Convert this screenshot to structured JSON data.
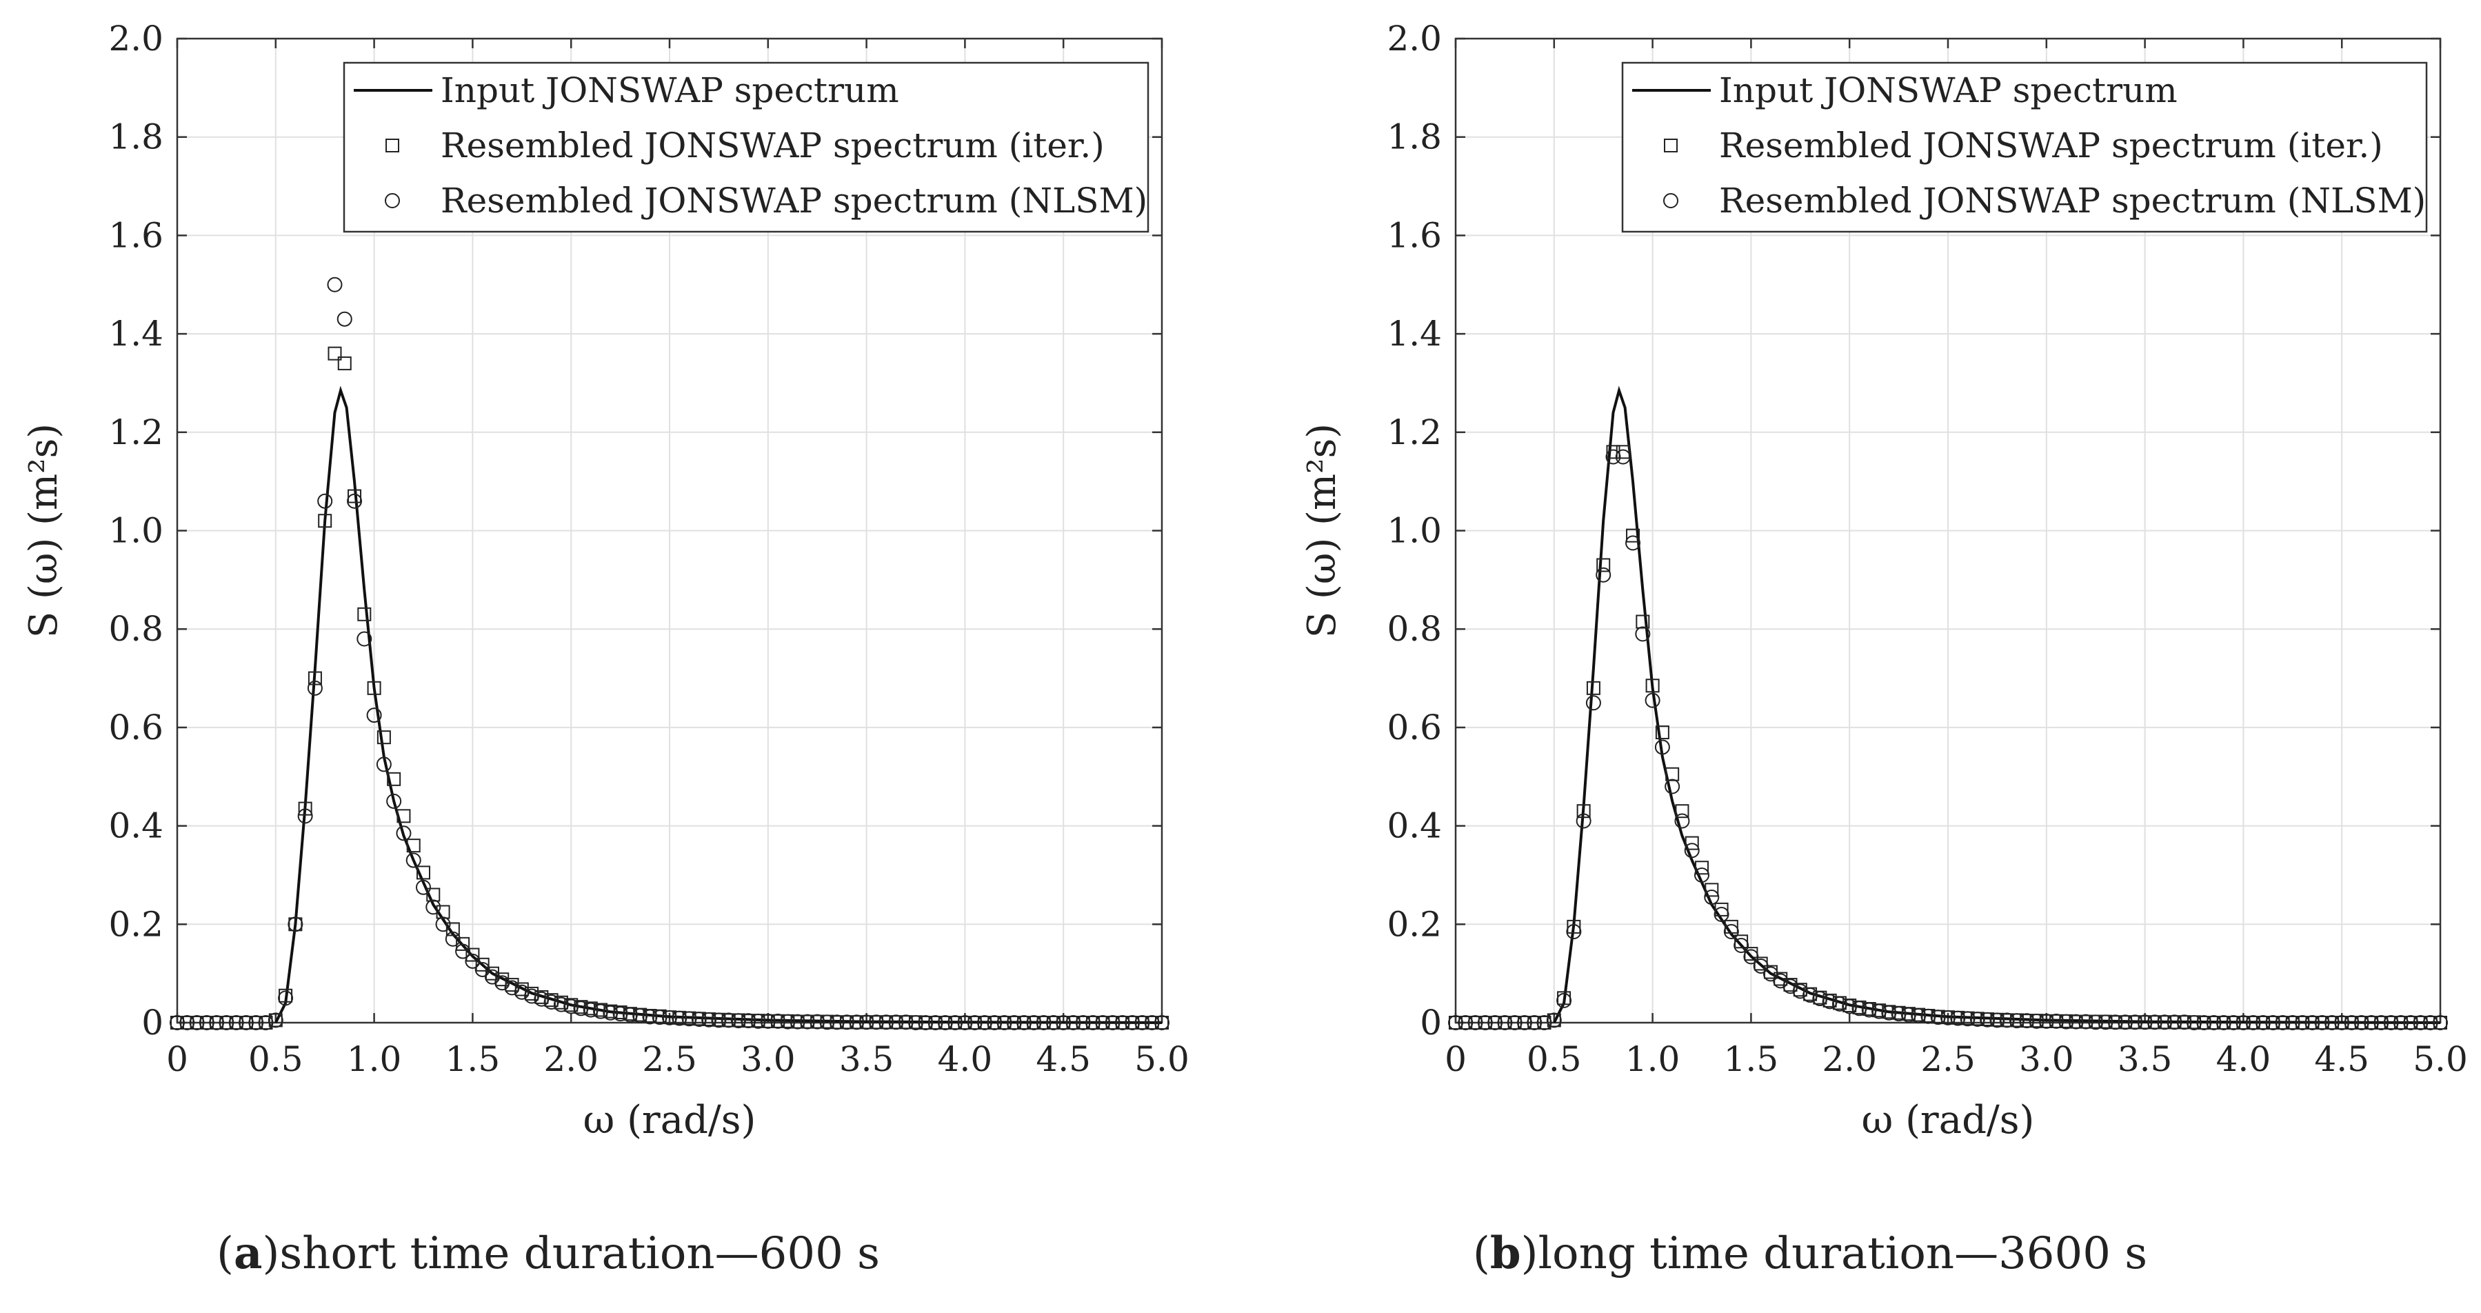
{
  "figure": {
    "captions": [
      {
        "letter": "a",
        "text": "short time duration—600 s"
      },
      {
        "letter": "b",
        "text": "long time duration—3600 s"
      }
    ]
  },
  "chart_data": [
    {
      "type": "line",
      "title": "",
      "xlabel": "ω (rad/s)",
      "ylabel": "S (ω) (m²s)",
      "xlim": [
        0,
        5
      ],
      "ylim": [
        0,
        2
      ],
      "grid": true,
      "legend_position": "top-right",
      "x_ticks": [
        "0",
        "0.5",
        "1.0",
        "1.5",
        "2.0",
        "2.5",
        "3.0",
        "3.5",
        "4.0",
        "4.5",
        "5.0"
      ],
      "y_ticks": [
        "0",
        "0.2",
        "0.4",
        "0.6",
        "0.8",
        "1.0",
        "1.2",
        "1.4",
        "1.6",
        "1.8",
        "2.0"
      ],
      "series": [
        {
          "name": "Input JONSWAP spectrum",
          "marker": "line",
          "x": [
            0.5,
            0.55,
            0.6,
            0.65,
            0.7,
            0.75,
            0.8,
            0.83,
            0.86,
            0.9,
            0.95,
            1.0,
            1.05,
            1.1,
            1.15,
            1.2,
            1.3,
            1.4,
            1.5,
            1.6,
            1.8,
            2.0,
            2.2,
            2.5,
            3.0,
            3.5,
            4.0,
            4.5,
            5.0
          ],
          "y": [
            0,
            0.04,
            0.2,
            0.44,
            0.72,
            1.02,
            1.24,
            1.285,
            1.25,
            1.1,
            0.88,
            0.68,
            0.54,
            0.45,
            0.38,
            0.33,
            0.24,
            0.18,
            0.135,
            0.1,
            0.06,
            0.036,
            0.022,
            0.012,
            0.005,
            0.002,
            0.001,
            0.0005,
            0
          ]
        },
        {
          "name": "Resembled JONSWAP spectrum (iter.)",
          "marker": "square",
          "x": [
            0,
            0.05,
            0.1,
            0.15,
            0.2,
            0.25,
            0.3,
            0.35,
            0.4,
            0.45,
            0.5,
            0.55,
            0.6,
            0.65,
            0.7,
            0.75,
            0.8,
            0.85,
            0.9,
            0.95,
            1.0,
            1.05,
            1.1,
            1.15,
            1.2,
            1.25,
            1.3,
            1.35,
            1.4,
            1.45,
            1.5,
            1.55,
            1.6,
            1.65,
            1.7,
            1.75,
            1.8,
            1.85,
            1.9,
            1.95,
            2.0,
            2.05,
            2.1,
            2.15,
            2.2,
            2.25,
            2.3,
            2.35,
            2.4,
            2.45,
            2.5,
            2.55,
            2.6,
            2.65,
            2.7,
            2.75,
            2.8,
            2.85,
            2.9,
            2.95,
            3.0,
            3.05,
            3.1,
            3.15,
            3.2,
            3.25,
            3.3,
            3.35,
            3.4,
            3.45,
            3.5,
            3.55,
            3.6,
            3.65,
            3.7,
            3.75,
            3.8,
            3.85,
            3.9,
            3.95,
            4.0,
            4.05,
            4.1,
            4.15,
            4.2,
            4.25,
            4.3,
            4.35,
            4.4,
            4.45,
            4.5,
            4.55,
            4.6,
            4.65,
            4.7,
            4.75,
            4.8,
            4.85,
            4.9,
            4.95,
            5.0
          ],
          "y": [
            0,
            0,
            0,
            0,
            0,
            0,
            0,
            0,
            0,
            0,
            0.005,
            0.055,
            0.2,
            0.435,
            0.7,
            1.02,
            1.36,
            1.34,
            1.07,
            0.83,
            0.68,
            0.58,
            0.495,
            0.42,
            0.36,
            0.305,
            0.26,
            0.225,
            0.19,
            0.16,
            0.138,
            0.118,
            0.1,
            0.088,
            0.077,
            0.068,
            0.059,
            0.052,
            0.046,
            0.041,
            0.036,
            0.032,
            0.029,
            0.026,
            0.023,
            0.021,
            0.018,
            0.016,
            0.014,
            0.013,
            0.011,
            0.01,
            0.009,
            0.008,
            0.007,
            0.006,
            0.005,
            0.005,
            0.004,
            0.004,
            0.003,
            0.003,
            0.003,
            0.002,
            0.002,
            0.002,
            0.002,
            0.001,
            0.001,
            0.001,
            0.001,
            0.001,
            0.001,
            0.001,
            0.001,
            0.001,
            0,
            0,
            0,
            0,
            0,
            0,
            0,
            0,
            0,
            0,
            0,
            0,
            0,
            0,
            0,
            0,
            0,
            0,
            0,
            0,
            0,
            0,
            0,
            0,
            0
          ]
        },
        {
          "name": "Resembled JONSWAP spectrum (NLSM)",
          "marker": "circle",
          "x": [
            0,
            0.05,
            0.1,
            0.15,
            0.2,
            0.25,
            0.3,
            0.35,
            0.4,
            0.45,
            0.5,
            0.55,
            0.6,
            0.65,
            0.7,
            0.75,
            0.8,
            0.85,
            0.9,
            0.95,
            1.0,
            1.05,
            1.1,
            1.15,
            1.2,
            1.25,
            1.3,
            1.35,
            1.4,
            1.45,
            1.5,
            1.55,
            1.6,
            1.65,
            1.7,
            1.75,
            1.8,
            1.85,
            1.9,
            1.95,
            2.0,
            2.05,
            2.1,
            2.15,
            2.2,
            2.25,
            2.3,
            2.35,
            2.4,
            2.45,
            2.5,
            2.55,
            2.6,
            2.65,
            2.7,
            2.75,
            2.8,
            2.85,
            2.9,
            2.95,
            3.0,
            3.05,
            3.1,
            3.15,
            3.2,
            3.25,
            3.3,
            3.35,
            3.4,
            3.45,
            3.5,
            3.55,
            3.6,
            3.65,
            3.7,
            3.75,
            3.8,
            3.85,
            3.9,
            3.95,
            4.0,
            4.05,
            4.1,
            4.15,
            4.2,
            4.25,
            4.3,
            4.35,
            4.4,
            4.45,
            4.5,
            4.55,
            4.6,
            4.65,
            4.7,
            4.75,
            4.8,
            4.85,
            4.9,
            4.95,
            5.0
          ],
          "y": [
            0,
            0,
            0,
            0,
            0,
            0,
            0,
            0,
            0,
            0,
            0.005,
            0.05,
            0.2,
            0.42,
            0.68,
            1.06,
            1.5,
            1.43,
            1.06,
            0.78,
            0.625,
            0.525,
            0.45,
            0.385,
            0.33,
            0.275,
            0.235,
            0.2,
            0.17,
            0.145,
            0.125,
            0.108,
            0.093,
            0.081,
            0.071,
            0.062,
            0.054,
            0.048,
            0.042,
            0.037,
            0.033,
            0.029,
            0.026,
            0.023,
            0.02,
            0.018,
            0.016,
            0.014,
            0.012,
            0.011,
            0.01,
            0.009,
            0.008,
            0.007,
            0.006,
            0.005,
            0.005,
            0.004,
            0.004,
            0.003,
            0.003,
            0.003,
            0.002,
            0.002,
            0.002,
            0.002,
            0.001,
            0.001,
            0.001,
            0.001,
            0.001,
            0.001,
            0.001,
            0.001,
            0.001,
            0,
            0,
            0,
            0,
            0,
            0,
            0,
            0,
            0,
            0,
            0,
            0,
            0,
            0,
            0,
            0,
            0,
            0,
            0,
            0,
            0,
            0,
            0,
            0,
            0,
            0
          ]
        }
      ]
    },
    {
      "type": "line",
      "title": "",
      "xlabel": "ω (rad/s)",
      "ylabel": "S (ω) (m²s)",
      "xlim": [
        0,
        5
      ],
      "ylim": [
        0,
        2
      ],
      "grid": true,
      "legend_position": "top-right",
      "x_ticks": [
        "0",
        "0.5",
        "1.0",
        "1.5",
        "2.0",
        "2.5",
        "3.0",
        "3.5",
        "4.0",
        "4.5",
        "5.0"
      ],
      "y_ticks": [
        "0",
        "0.2",
        "0.4",
        "0.6",
        "0.8",
        "1.0",
        "1.2",
        "1.4",
        "1.6",
        "1.8",
        "2.0"
      ],
      "series": [
        {
          "name": "Input JONSWAP spectrum",
          "marker": "line",
          "x": [
            0.5,
            0.55,
            0.6,
            0.65,
            0.7,
            0.75,
            0.8,
            0.83,
            0.86,
            0.9,
            0.95,
            1.0,
            1.05,
            1.1,
            1.15,
            1.2,
            1.3,
            1.4,
            1.5,
            1.6,
            1.8,
            2.0,
            2.2,
            2.5,
            3.0,
            3.5,
            4.0,
            4.5,
            5.0
          ],
          "y": [
            0,
            0.04,
            0.2,
            0.44,
            0.72,
            1.02,
            1.24,
            1.285,
            1.25,
            1.1,
            0.88,
            0.68,
            0.54,
            0.45,
            0.38,
            0.33,
            0.24,
            0.18,
            0.135,
            0.1,
            0.06,
            0.036,
            0.022,
            0.012,
            0.005,
            0.002,
            0.001,
            0.0005,
            0
          ]
        },
        {
          "name": "Resembled JONSWAP spectrum (iter.)",
          "marker": "square",
          "x": [
            0,
            0.05,
            0.1,
            0.15,
            0.2,
            0.25,
            0.3,
            0.35,
            0.4,
            0.45,
            0.5,
            0.55,
            0.6,
            0.65,
            0.7,
            0.75,
            0.8,
            0.85,
            0.9,
            0.95,
            1.0,
            1.05,
            1.1,
            1.15,
            1.2,
            1.25,
            1.3,
            1.35,
            1.4,
            1.45,
            1.5,
            1.55,
            1.6,
            1.65,
            1.7,
            1.75,
            1.8,
            1.85,
            1.9,
            1.95,
            2.0,
            2.05,
            2.1,
            2.15,
            2.2,
            2.25,
            2.3,
            2.35,
            2.4,
            2.45,
            2.5,
            2.55,
            2.6,
            2.65,
            2.7,
            2.75,
            2.8,
            2.85,
            2.9,
            2.95,
            3.0,
            3.05,
            3.1,
            3.15,
            3.2,
            3.25,
            3.3,
            3.35,
            3.4,
            3.45,
            3.5,
            3.55,
            3.6,
            3.65,
            3.7,
            3.75,
            3.8,
            3.85,
            3.9,
            3.95,
            4.0,
            4.05,
            4.1,
            4.15,
            4.2,
            4.25,
            4.3,
            4.35,
            4.4,
            4.45,
            4.5,
            4.55,
            4.6,
            4.65,
            4.7,
            4.75,
            4.8,
            4.85,
            4.9,
            4.95,
            5.0
          ],
          "y": [
            0,
            0,
            0,
            0,
            0,
            0,
            0,
            0,
            0,
            0,
            0.005,
            0.05,
            0.195,
            0.43,
            0.68,
            0.93,
            1.16,
            1.16,
            0.99,
            0.815,
            0.685,
            0.59,
            0.505,
            0.43,
            0.365,
            0.315,
            0.27,
            0.23,
            0.195,
            0.165,
            0.14,
            0.12,
            0.103,
            0.089,
            0.077,
            0.067,
            0.058,
            0.051,
            0.045,
            0.04,
            0.035,
            0.031,
            0.028,
            0.025,
            0.022,
            0.02,
            0.018,
            0.016,
            0.014,
            0.012,
            0.011,
            0.01,
            0.009,
            0.008,
            0.007,
            0.006,
            0.005,
            0.005,
            0.004,
            0.004,
            0.003,
            0.003,
            0.003,
            0.002,
            0.002,
            0.002,
            0.002,
            0.001,
            0.001,
            0.001,
            0.001,
            0.001,
            0.001,
            0.001,
            0.001,
            0.001,
            0,
            0,
            0,
            0,
            0,
            0,
            0,
            0,
            0,
            0,
            0,
            0,
            0,
            0,
            0,
            0,
            0,
            0,
            0,
            0,
            0,
            0,
            0,
            0,
            0
          ]
        },
        {
          "name": "Resembled JONSWAP spectrum (NLSM)",
          "marker": "circle",
          "x": [
            0,
            0.05,
            0.1,
            0.15,
            0.2,
            0.25,
            0.3,
            0.35,
            0.4,
            0.45,
            0.5,
            0.55,
            0.6,
            0.65,
            0.7,
            0.75,
            0.8,
            0.85,
            0.9,
            0.95,
            1.0,
            1.05,
            1.1,
            1.15,
            1.2,
            1.25,
            1.3,
            1.35,
            1.4,
            1.45,
            1.5,
            1.55,
            1.6,
            1.65,
            1.7,
            1.75,
            1.8,
            1.85,
            1.9,
            1.95,
            2.0,
            2.05,
            2.1,
            2.15,
            2.2,
            2.25,
            2.3,
            2.35,
            2.4,
            2.45,
            2.5,
            2.55,
            2.6,
            2.65,
            2.7,
            2.75,
            2.8,
            2.85,
            2.9,
            2.95,
            3.0,
            3.05,
            3.1,
            3.15,
            3.2,
            3.25,
            3.3,
            3.35,
            3.4,
            3.45,
            3.5,
            3.55,
            3.6,
            3.65,
            3.7,
            3.75,
            3.8,
            3.85,
            3.9,
            3.95,
            4.0,
            4.05,
            4.1,
            4.15,
            4.2,
            4.25,
            4.3,
            4.35,
            4.4,
            4.45,
            4.5,
            4.55,
            4.6,
            4.65,
            4.7,
            4.75,
            4.8,
            4.85,
            4.9,
            4.95,
            5.0
          ],
          "y": [
            0,
            0,
            0,
            0,
            0,
            0,
            0,
            0,
            0,
            0,
            0.005,
            0.045,
            0.185,
            0.41,
            0.65,
            0.91,
            1.15,
            1.15,
            0.975,
            0.79,
            0.655,
            0.56,
            0.48,
            0.41,
            0.35,
            0.3,
            0.255,
            0.22,
            0.185,
            0.157,
            0.134,
            0.115,
            0.099,
            0.085,
            0.074,
            0.064,
            0.056,
            0.049,
            0.043,
            0.038,
            0.033,
            0.029,
            0.026,
            0.023,
            0.02,
            0.018,
            0.016,
            0.014,
            0.013,
            0.011,
            0.01,
            0.009,
            0.008,
            0.007,
            0.006,
            0.005,
            0.005,
            0.004,
            0.004,
            0.003,
            0.003,
            0.003,
            0.002,
            0.002,
            0.002,
            0.001,
            0.001,
            0.001,
            0.001,
            0.001,
            0.001,
            0.001,
            0.001,
            0.001,
            0.001,
            0,
            0,
            0,
            0,
            0,
            0,
            0,
            0,
            0,
            0,
            0,
            0,
            0,
            0,
            0,
            0,
            0,
            0,
            0,
            0,
            0,
            0,
            0,
            0,
            0,
            0
          ]
        }
      ]
    }
  ]
}
